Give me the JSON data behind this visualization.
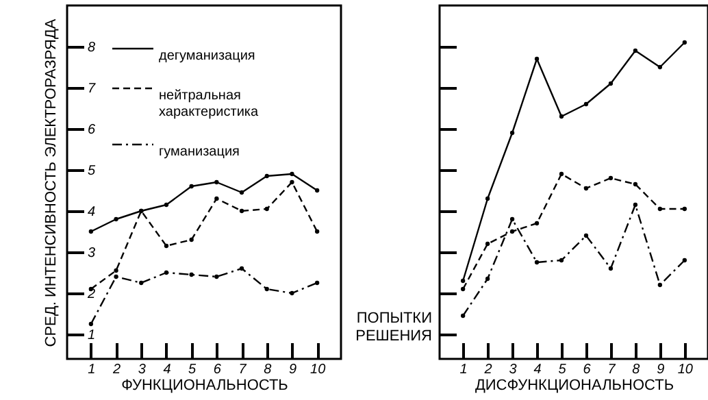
{
  "chart_data": [
    {
      "type": "line",
      "xlabel": "ФУНКЦИОНАЛЬНОСТЬ",
      "ylabel": "СРЕД. ИНТЕНСИВНОСТЬ ЭЛЕКТРОРАЗРЯДА",
      "categories": [
        "1",
        "2",
        "3",
        "4",
        "5",
        "6",
        "7",
        "8",
        "9",
        "10"
      ],
      "ylim": [
        0.4,
        9.0
      ],
      "yticks": [
        1,
        2,
        3,
        4,
        5,
        6,
        7,
        8
      ],
      "grid": false,
      "legend": "top left",
      "marker": "circle",
      "series": [
        {
          "name": "дегуманизация",
          "color": "#000000",
          "line_style": "solid",
          "values": [
            3.5,
            3.8,
            4.0,
            4.15,
            4.6,
            4.7,
            4.45,
            4.85,
            4.9,
            4.5
          ]
        },
        {
          "name": "нейтральная характеристика",
          "color": "#000000",
          "line_style": "dashed",
          "values": [
            2.1,
            2.55,
            4.0,
            3.15,
            3.3,
            4.3,
            4.0,
            4.05,
            4.7,
            3.5
          ]
        },
        {
          "name": "гуманизация",
          "color": "#000000",
          "line_style": "dashdot",
          "values": [
            1.25,
            2.4,
            2.25,
            2.5,
            2.45,
            2.4,
            2.6,
            2.1,
            2.0,
            2.25
          ]
        }
      ]
    },
    {
      "type": "line",
      "xlabel": "ДИСФУНКЦИОНАЛЬНОСТЬ",
      "ylabel": "ПОПЫТКИ РЕШЕНИЯ",
      "categories": [
        "1",
        "2",
        "3",
        "4",
        "5",
        "6",
        "7",
        "8",
        "9",
        "10"
      ],
      "ylim": [
        0.4,
        9.0
      ],
      "yticks": [
        1,
        2,
        3,
        4,
        5,
        6,
        7,
        8
      ],
      "grid": false,
      "tick_labels": "x",
      "marker": "circle",
      "series": [
        {
          "color": "#000000",
          "line_style": "solid",
          "values": [
            2.3,
            4.3,
            5.9,
            7.7,
            6.3,
            6.6,
            7.1,
            7.9,
            7.5,
            8.1
          ]
        },
        {
          "color": "#000000",
          "line_style": "dashed",
          "values": [
            2.1,
            3.2,
            3.5,
            3.7,
            4.9,
            4.55,
            4.8,
            4.65,
            4.05,
            4.05
          ]
        },
        {
          "color": "#000000",
          "line_style": "dashdot",
          "values": [
            1.45,
            2.35,
            3.8,
            2.75,
            2.8,
            3.4,
            2.6,
            4.15,
            2.2,
            2.8
          ]
        }
      ]
    }
  ]
}
